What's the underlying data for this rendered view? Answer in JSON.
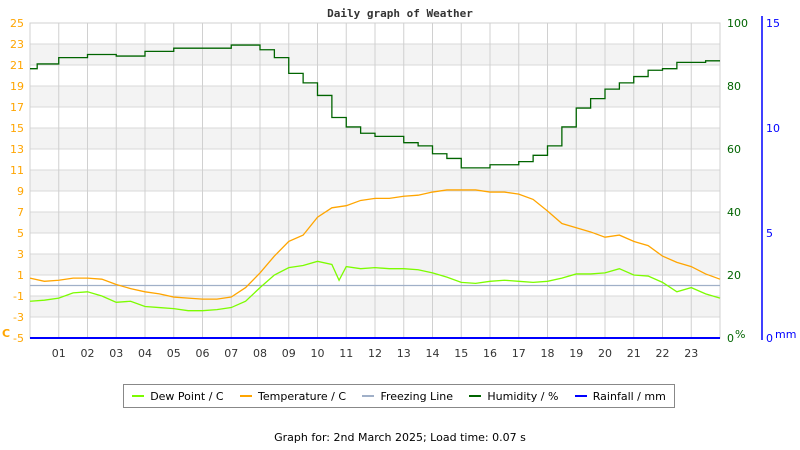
{
  "chart_data": {
    "type": "line",
    "title": "Daily graph of Weather",
    "x_ticks": [
      "01",
      "02",
      "03",
      "04",
      "05",
      "06",
      "07",
      "08",
      "09",
      "10",
      "11",
      "12",
      "13",
      "14",
      "15",
      "16",
      "17",
      "18",
      "19",
      "20",
      "21",
      "22",
      "23"
    ],
    "x_range": [
      "00:00",
      "24:00"
    ],
    "grid": true,
    "axes": {
      "left": {
        "unit": "C",
        "range": [
          -5,
          25
        ],
        "ticks": [
          -5,
          -3,
          -1,
          1,
          3,
          5,
          7,
          9,
          11,
          13,
          15,
          17,
          19,
          21,
          23,
          25
        ],
        "color": "#ffa500"
      },
      "right1": {
        "unit": "%",
        "range": [
          0,
          100
        ],
        "ticks": [
          0,
          20,
          40,
          60,
          80,
          100
        ],
        "color": "#006400"
      },
      "right2": {
        "unit": "mm",
        "range": [
          0,
          15
        ],
        "ticks": [
          0,
          5,
          10,
          15
        ],
        "color": "#0000ff"
      }
    },
    "legend_position": "bottom",
    "series": [
      {
        "name": "Dew Point / C",
        "axis": "left",
        "color": "#7cfc00",
        "x": [
          "00:00",
          "00:30",
          "01:00",
          "01:30",
          "02:00",
          "02:30",
          "03:00",
          "03:30",
          "04:00",
          "04:30",
          "05:00",
          "05:30",
          "06:00",
          "06:30",
          "07:00",
          "07:30",
          "08:00",
          "08:30",
          "09:00",
          "09:30",
          "10:00",
          "10:30",
          "10:45",
          "11:00",
          "11:30",
          "12:00",
          "12:30",
          "13:00",
          "13:30",
          "14:00",
          "14:30",
          "15:00",
          "15:30",
          "16:00",
          "16:30",
          "17:00",
          "17:30",
          "18:00",
          "18:30",
          "19:00",
          "19:30",
          "20:00",
          "20:30",
          "21:00",
          "21:30",
          "22:00",
          "22:30",
          "23:00",
          "23:30",
          "24:00"
        ],
        "y": [
          -1.5,
          -1.4,
          -1.2,
          -0.7,
          -0.6,
          -1.0,
          -1.6,
          -1.5,
          -2.0,
          -2.1,
          -2.2,
          -2.4,
          -2.4,
          -2.3,
          -2.1,
          -1.5,
          -0.2,
          1.0,
          1.7,
          1.9,
          2.3,
          2.0,
          0.5,
          1.8,
          1.6,
          1.7,
          1.6,
          1.6,
          1.5,
          1.2,
          0.8,
          0.3,
          0.2,
          0.4,
          0.5,
          0.4,
          0.3,
          0.4,
          0.7,
          1.1,
          1.1,
          1.2,
          1.6,
          1.0,
          0.9,
          0.3,
          -0.6,
          -0.2,
          -0.8,
          -1.2
        ]
      },
      {
        "name": "Temperature / C",
        "axis": "left",
        "color": "#ffa500",
        "x": [
          "00:00",
          "00:30",
          "01:00",
          "01:30",
          "02:00",
          "02:30",
          "03:00",
          "03:30",
          "04:00",
          "04:30",
          "05:00",
          "05:30",
          "06:00",
          "06:30",
          "07:00",
          "07:30",
          "08:00",
          "08:30",
          "09:00",
          "09:30",
          "10:00",
          "10:30",
          "11:00",
          "11:30",
          "12:00",
          "12:30",
          "13:00",
          "13:30",
          "14:00",
          "14:30",
          "15:00",
          "15:30",
          "16:00",
          "16:30",
          "17:00",
          "17:30",
          "18:00",
          "18:30",
          "19:00",
          "19:30",
          "20:00",
          "20:30",
          "21:00",
          "21:30",
          "22:00",
          "22:30",
          "23:00",
          "23:30",
          "24:00"
        ],
        "y": [
          0.7,
          0.4,
          0.5,
          0.7,
          0.7,
          0.6,
          0.1,
          -0.3,
          -0.6,
          -0.8,
          -1.1,
          -1.2,
          -1.3,
          -1.3,
          -1.1,
          -0.2,
          1.2,
          2.8,
          4.2,
          4.8,
          6.5,
          7.4,
          7.6,
          8.1,
          8.3,
          8.3,
          8.5,
          8.6,
          8.9,
          9.1,
          9.1,
          9.1,
          8.9,
          8.9,
          8.7,
          8.2,
          7.1,
          5.9,
          5.5,
          5.1,
          4.6,
          4.8,
          4.2,
          3.8,
          2.8,
          2.2,
          1.8,
          1.1,
          0.6
        ]
      },
      {
        "name": "Freezing Line",
        "axis": "left",
        "color": "#a0b0c8",
        "x": [
          "00:00",
          "24:00"
        ],
        "y": [
          0,
          0
        ]
      },
      {
        "name": "Humidity / %",
        "axis": "right1",
        "color": "#006400",
        "x": [
          "00:00",
          "00:15",
          "01:00",
          "02:00",
          "03:00",
          "04:00",
          "05:00",
          "06:00",
          "07:00",
          "07:45",
          "08:00",
          "08:30",
          "09:00",
          "09:30",
          "10:00",
          "10:30",
          "11:00",
          "11:30",
          "12:00",
          "13:00",
          "13:30",
          "14:00",
          "14:30",
          "15:00",
          "16:00",
          "17:00",
          "17:30",
          "18:00",
          "18:30",
          "19:00",
          "19:30",
          "20:00",
          "20:30",
          "21:00",
          "21:30",
          "22:00",
          "22:30",
          "23:00",
          "23:30",
          "24:00"
        ],
        "y": [
          85.5,
          87,
          89,
          90,
          89.5,
          91,
          92,
          92,
          93,
          93,
          91.5,
          89,
          84,
          81,
          77,
          70,
          67,
          65,
          64,
          62,
          61,
          58.5,
          57,
          54,
          55,
          56,
          58,
          61,
          67,
          73,
          76,
          79,
          81,
          83,
          85,
          85.5,
          87.5,
          87.5,
          88,
          88
        ]
      },
      {
        "name": "Rainfall / mm",
        "axis": "right2",
        "color": "#0000ff",
        "x": [
          "00:00",
          "24:00"
        ],
        "y": [
          0,
          0
        ]
      }
    ]
  },
  "footer": "Graph for: 2nd March 2025; Load time: 0.07 s"
}
